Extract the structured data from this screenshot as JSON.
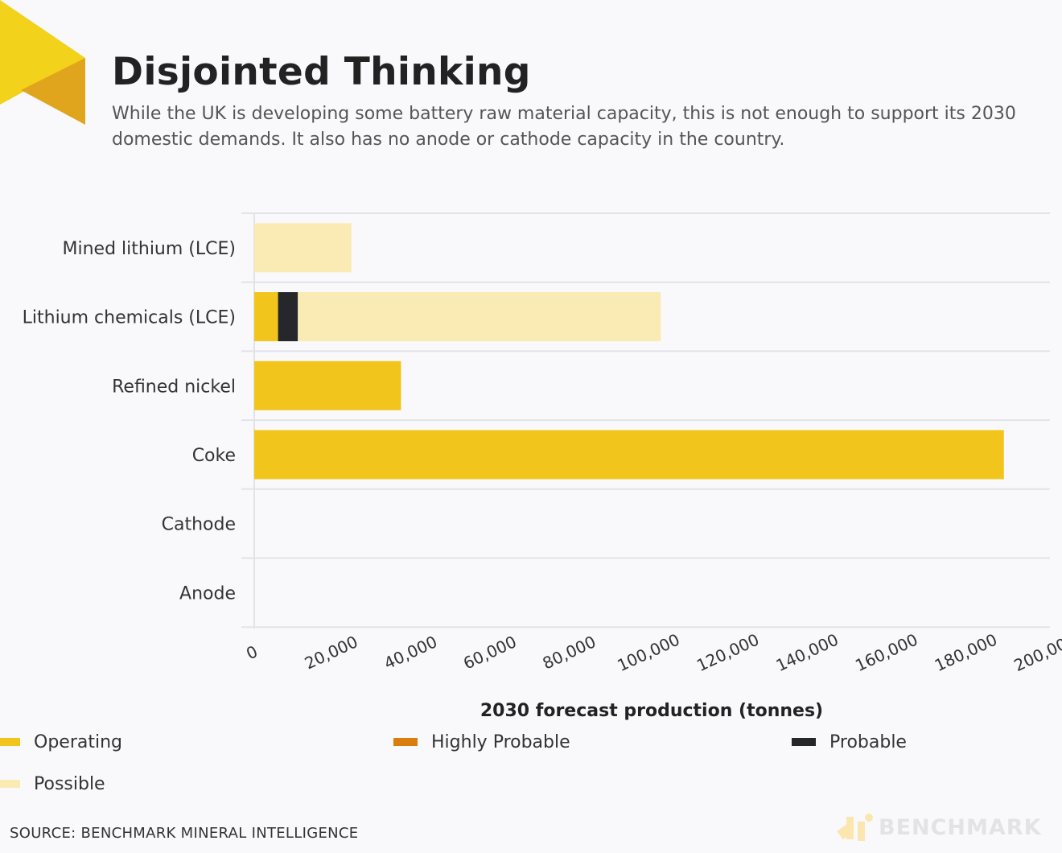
{
  "header": {
    "title": "Disjointed Thinking",
    "subtitle": "While the UK is developing some battery raw material capacity, this is not enough to support its 2030 domestic demands. It also has no anode or cathode capacity in the country."
  },
  "chart_data": {
    "type": "bar",
    "orientation": "horizontal",
    "stacked": true,
    "categories": [
      "Mined lithium (LCE)",
      "Lithium chemicals (LCE)",
      "Refined nickel",
      "Coke",
      "Cathode",
      "Anode"
    ],
    "series": [
      {
        "name": "Operating",
        "color": "#f2c51c",
        "values": [
          0,
          6000,
          37000,
          189000,
          0,
          0
        ]
      },
      {
        "name": "Highly Probable",
        "color": "#d97d0f",
        "values": [
          0,
          0,
          0,
          0,
          0,
          0
        ]
      },
      {
        "name": "Probable",
        "color": "#26272b",
        "values": [
          0,
          5000,
          0,
          0,
          0,
          0
        ]
      },
      {
        "name": "Possible",
        "color": "#faeab4",
        "values": [
          24500,
          91500,
          0,
          0,
          0,
          0
        ]
      }
    ],
    "xlabel": "2030 forecast production (tonnes)",
    "ylabel": "",
    "xlim": [
      0,
      200000
    ],
    "xticks": [
      0,
      20000,
      40000,
      60000,
      80000,
      100000,
      120000,
      140000,
      160000,
      180000,
      200000
    ],
    "xtick_labels": [
      "0",
      "20,000",
      "40,000",
      "60,000",
      "80,000",
      "100,000",
      "120,000",
      "140,000",
      "160,000",
      "180,000",
      "200,000"
    ],
    "grid": "horizontal",
    "legend_placement": "bottom"
  },
  "legend": [
    {
      "label": "Operating",
      "color": "#f2c51c"
    },
    {
      "label": "Highly Probable",
      "color": "#d97d0f"
    },
    {
      "label": "Probable",
      "color": "#26272b"
    },
    {
      "label": "Possible",
      "color": "#faeab4"
    }
  ],
  "footer": {
    "source": "SOURCE: BENCHMARK MINERAL INTELLIGENCE",
    "brand": "BENCHMARK"
  },
  "colors": {
    "brand_yellow": "#f2d21a",
    "brand_gold": "#e0a51c",
    "grid": "#e2e2e8"
  }
}
